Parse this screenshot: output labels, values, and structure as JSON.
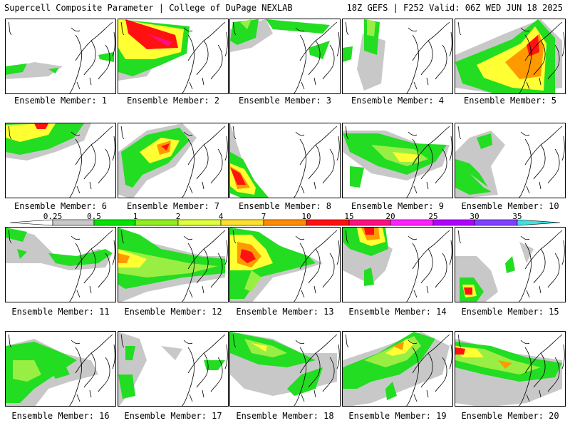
{
  "header": {
    "left": "Supercell Composite Parameter | College of DuPage NEXLAB",
    "right": "18Z GEFS | F252 Valid: 06Z WED JUN 18 2025"
  },
  "member_label_prefix": "Ensemble Member:",
  "members": [
    1,
    2,
    3,
    4,
    5,
    6,
    7,
    8,
    9,
    10,
    11,
    12,
    13,
    14,
    15,
    16,
    17,
    18,
    19,
    20
  ],
  "colorbar": {
    "ticks": [
      "0.25",
      "0.5",
      "1",
      "2",
      "4",
      "7",
      "10",
      "15",
      "20",
      "25",
      "30",
      "35"
    ],
    "colors": [
      "#c8c8c8",
      "#00e400",
      "#90ee20",
      "#e0ff40",
      "#ffe030",
      "#ff8c00",
      "#ff1010",
      "#ff1080",
      "#ff20ff",
      "#b000ff",
      "#8040ff",
      "#40e0e0"
    ]
  },
  "colors": {
    "gray": "#c8c8c8",
    "green": "#22dd22",
    "lightgreen": "#99ee44",
    "yellow": "#ffff33",
    "orange": "#ff9900",
    "red": "#ff1111",
    "magenta": "#ff1080"
  }
}
